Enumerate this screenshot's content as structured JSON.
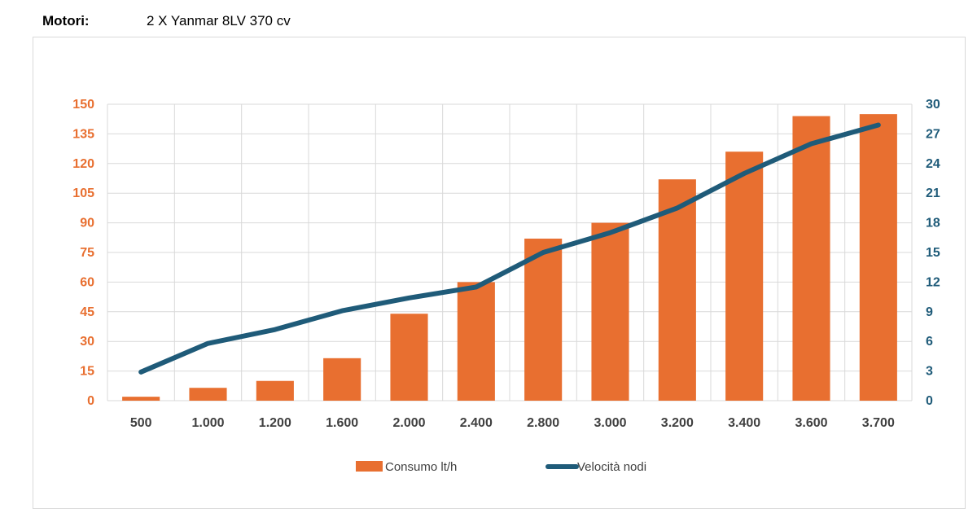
{
  "header": {
    "label": "Motori:",
    "value": "2 X Yanmar 8LV 370 cv"
  },
  "colors": {
    "bar": "#e86f30",
    "line": "#1f5b79",
    "left_axis": "#e86f30",
    "right_axis": "#1f5b79",
    "grid": "#d9d9d9"
  },
  "chart_data": {
    "type": "bar",
    "categories": [
      "500",
      "1.000",
      "1.200",
      "1.600",
      "2.000",
      "2.400",
      "2.800",
      "3.000",
      "3.200",
      "3.400",
      "3.600",
      "3.700"
    ],
    "series": [
      {
        "name": "Consumo lt/h",
        "type": "bar",
        "axis": "left",
        "values": [
          2,
          6.5,
          10,
          21.5,
          44,
          60,
          82,
          90,
          112,
          126,
          144,
          145
        ]
      },
      {
        "name": "Velocità nodi",
        "type": "line",
        "axis": "right",
        "values": [
          2.9,
          5.8,
          7.2,
          9.1,
          10.4,
          11.5,
          15,
          17,
          19.5,
          23,
          26,
          27.9
        ]
      }
    ],
    "left_axis": {
      "ylim": [
        0,
        150
      ],
      "ticks": [
        "0",
        "15",
        "30",
        "45",
        "60",
        "75",
        "90",
        "105",
        "120",
        "135",
        "150"
      ]
    },
    "right_axis": {
      "ylim": [
        0,
        30
      ],
      "ticks": [
        "0",
        "3",
        "6",
        "9",
        "12",
        "15",
        "18",
        "21",
        "24",
        "27",
        "30"
      ]
    },
    "grid": true,
    "legend_position": "bottom"
  }
}
